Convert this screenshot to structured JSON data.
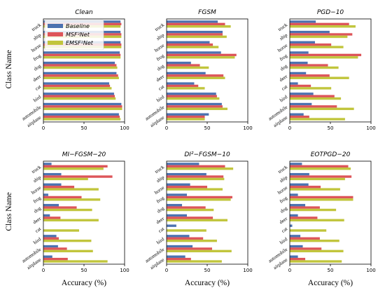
{
  "figure": {
    "row_ylabels": [
      "Class Name",
      "Class Name"
    ],
    "col_xlabels": [
      "Accuracy (%)",
      "Accuracy (%)",
      "Accuracy (%)"
    ]
  },
  "legend": {
    "entries": [
      "Baseline",
      "MSF²Net",
      "EMSF²Net"
    ],
    "placement": "top-left of first panel"
  },
  "colors": {
    "baseline": "#4c72b0",
    "msf2net": "#dd5559",
    "emsf2net": "#c1c53c"
  },
  "chart_data": [
    {
      "type": "bar",
      "orientation": "horizontal",
      "title": "Clean",
      "categories": [
        "airplane",
        "automobile",
        "bird",
        "cat",
        "deer",
        "dog",
        "frog",
        "horse",
        "ship",
        "truck"
      ],
      "xlim": [
        0,
        100
      ],
      "xticks": [
        "0",
        "50",
        "100"
      ],
      "series": [
        {
          "name": "Baseline",
          "values": [
            93,
            96,
            87,
            81,
            90,
            88,
            94,
            95,
            95,
            95
          ]
        },
        {
          "name": "MSF²Net",
          "values": [
            94,
            97,
            88,
            82,
            92,
            90,
            95,
            96,
            96,
            96
          ]
        },
        {
          "name": "EMSF²Net",
          "values": [
            95,
            97,
            89,
            84,
            93,
            91,
            95,
            96,
            96,
            95
          ]
        }
      ]
    },
    {
      "type": "bar",
      "orientation": "horizontal",
      "title": "FGSM",
      "categories": [
        "airplane",
        "automobile",
        "bird",
        "cat",
        "deer",
        "dog",
        "frog",
        "horse",
        "ship",
        "truck"
      ],
      "xlim": [
        0,
        100
      ],
      "xticks": [
        "0",
        "50",
        "100"
      ],
      "series": [
        {
          "name": "Baseline",
          "values": [
            52,
            68,
            61,
            34,
            48,
            30,
            67,
            53,
            69,
            63
          ]
        },
        {
          "name": "MSF²Net",
          "values": [
            47,
            69,
            62,
            39,
            70,
            41,
            86,
            57,
            69,
            72
          ]
        },
        {
          "name": "EMSF²Net",
          "values": [
            47,
            75,
            65,
            47,
            72,
            52,
            84,
            64,
            74,
            79
          ]
        }
      ]
    },
    {
      "type": "bar",
      "orientation": "horizontal",
      "title": "PGD−10",
      "categories": [
        "airplane",
        "automobile",
        "bird",
        "cat",
        "deer",
        "dog",
        "frog",
        "horse",
        "ship",
        "truck"
      ],
      "xlim": [
        0,
        100
      ],
      "xticks": [
        "0",
        "50",
        "100"
      ],
      "series": [
        {
          "name": "Baseline",
          "values": [
            17,
            27,
            29,
            10,
            20,
            22,
            23,
            31,
            49,
            32
          ]
        },
        {
          "name": "MSF²Net",
          "values": [
            24,
            58,
            55,
            26,
            49,
            47,
            88,
            51,
            77,
            73
          ]
        },
        {
          "name": "EMSF²Net",
          "values": [
            68,
            79,
            63,
            51,
            73,
            60,
            84,
            66,
            71,
            81
          ]
        }
      ]
    },
    {
      "type": "bar",
      "orientation": "horizontal",
      "title": "MI−FGSM−20",
      "categories": [
        "airplane",
        "automobile",
        "bird",
        "cat",
        "deer",
        "dog",
        "frog",
        "horse",
        "ship",
        "truck"
      ],
      "xlim": [
        0,
        100
      ],
      "xticks": [
        "0",
        "50",
        "100"
      ],
      "series": [
        {
          "name": "Baseline",
          "values": [
            11,
            18,
            16,
            0,
            8,
            19,
            6,
            22,
            22,
            10
          ]
        },
        {
          "name": "MSF²Net",
          "values": [
            30,
            29,
            19,
            0,
            21,
            41,
            47,
            38,
            85,
            79
          ]
        },
        {
          "name": "EMSF²Net",
          "values": [
            79,
            61,
            59,
            44,
            68,
            60,
            70,
            68,
            55,
            74
          ]
        }
      ]
    },
    {
      "type": "bar",
      "orientation": "horizontal",
      "title": "DI²−FGSM−10",
      "categories": [
        "airplane",
        "automobile",
        "bird",
        "cat",
        "deer",
        "dog",
        "frog",
        "horse",
        "ship",
        "truck"
      ],
      "xlim": [
        0,
        100
      ],
      "xticks": [
        "0",
        "50",
        "100"
      ],
      "series": [
        {
          "name": "Baseline",
          "values": [
            23,
            32,
            28,
            12,
            25,
            19,
            25,
            29,
            49,
            40
          ]
        },
        {
          "name": "MSF²Net",
          "values": [
            30,
            56,
            45,
            0,
            57,
            48,
            81,
            50,
            70,
            72
          ]
        },
        {
          "name": "EMSF²Net",
          "values": [
            68,
            80,
            62,
            49,
            75,
            58,
            79,
            69,
            71,
            82
          ]
        }
      ]
    },
    {
      "type": "bar",
      "orientation": "horizontal",
      "title": "EOTPGD−20",
      "categories": [
        "airplane",
        "automobile",
        "bird",
        "cat",
        "deer",
        "dog",
        "frog",
        "horse",
        "ship",
        "truck"
      ],
      "xlim": [
        0,
        100
      ],
      "xticks": [
        "0",
        "50",
        "100"
      ],
      "series": [
        {
          "name": "Baseline",
          "values": [
            10,
            16,
            13,
            3,
            10,
            19,
            10,
            23,
            24,
            15
          ]
        },
        {
          "name": "MSF²Net",
          "values": [
            19,
            39,
            37,
            0,
            34,
            37,
            78,
            38,
            76,
            72
          ]
        },
        {
          "name": "EMSF²Net",
          "values": [
            64,
            66,
            61,
            45,
            67,
            57,
            78,
            62,
            68,
            75
          ]
        }
      ]
    }
  ]
}
